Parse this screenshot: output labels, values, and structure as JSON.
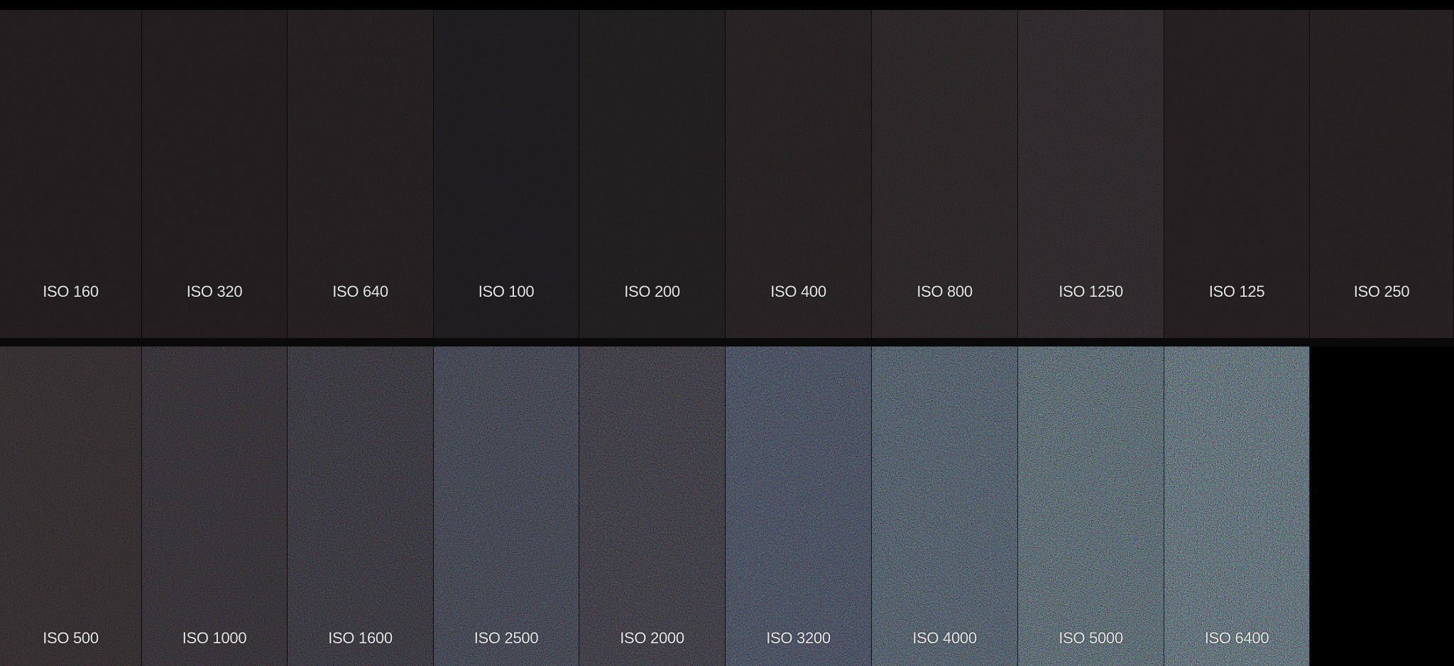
{
  "image": {
    "background": "#000000",
    "rows": [
      {
        "tiles": [
          {
            "label": "ISO 160",
            "tint": "#1a1617",
            "noise": 0.08
          },
          {
            "label": "ISO 320",
            "tint": "#1a1617",
            "noise": 0.08
          },
          {
            "label": "ISO 640",
            "tint": "#1b1718",
            "noise": 0.1
          },
          {
            "label": "ISO 100",
            "tint": "#19161a",
            "noise": 0.07
          },
          {
            "label": "ISO 200",
            "tint": "#1a1718",
            "noise": 0.08
          },
          {
            "label": "ISO 400",
            "tint": "#1c1819",
            "noise": 0.11
          },
          {
            "label": "ISO 800",
            "tint": "#1e1a1b",
            "noise": 0.14
          },
          {
            "label": "ISO 1250",
            "tint": "#201b1e",
            "noise": 0.17
          },
          {
            "label": "ISO 125",
            "tint": "#1c1719",
            "noise": 0.08
          },
          {
            "label": "ISO 250",
            "tint": "#1d1819",
            "noise": 0.09
          }
        ]
      },
      {
        "tiles": [
          {
            "label": "ISO 500",
            "tint": "#211b1d",
            "noise": 0.22
          },
          {
            "label": "ISO 1000",
            "tint": "#211c22",
            "noise": 0.26
          },
          {
            "label": "ISO 1600",
            "tint": "#1f1c27",
            "noise": 0.32
          },
          {
            "label": "ISO 2500",
            "tint": "#22283a",
            "noise": 0.4
          },
          {
            "label": "ISO 2000",
            "tint": "#221f2c",
            "noise": 0.36
          },
          {
            "label": "ISO 3200",
            "tint": "#23304d",
            "noise": 0.46
          },
          {
            "label": "ISO 4000",
            "tint": "#274259",
            "noise": 0.54
          },
          {
            "label": "ISO 5000",
            "tint": "#2c5467",
            "noise": 0.62
          },
          {
            "label": "ISO 6400",
            "tint": "#2f6077",
            "noise": 0.68
          }
        ]
      }
    ]
  }
}
